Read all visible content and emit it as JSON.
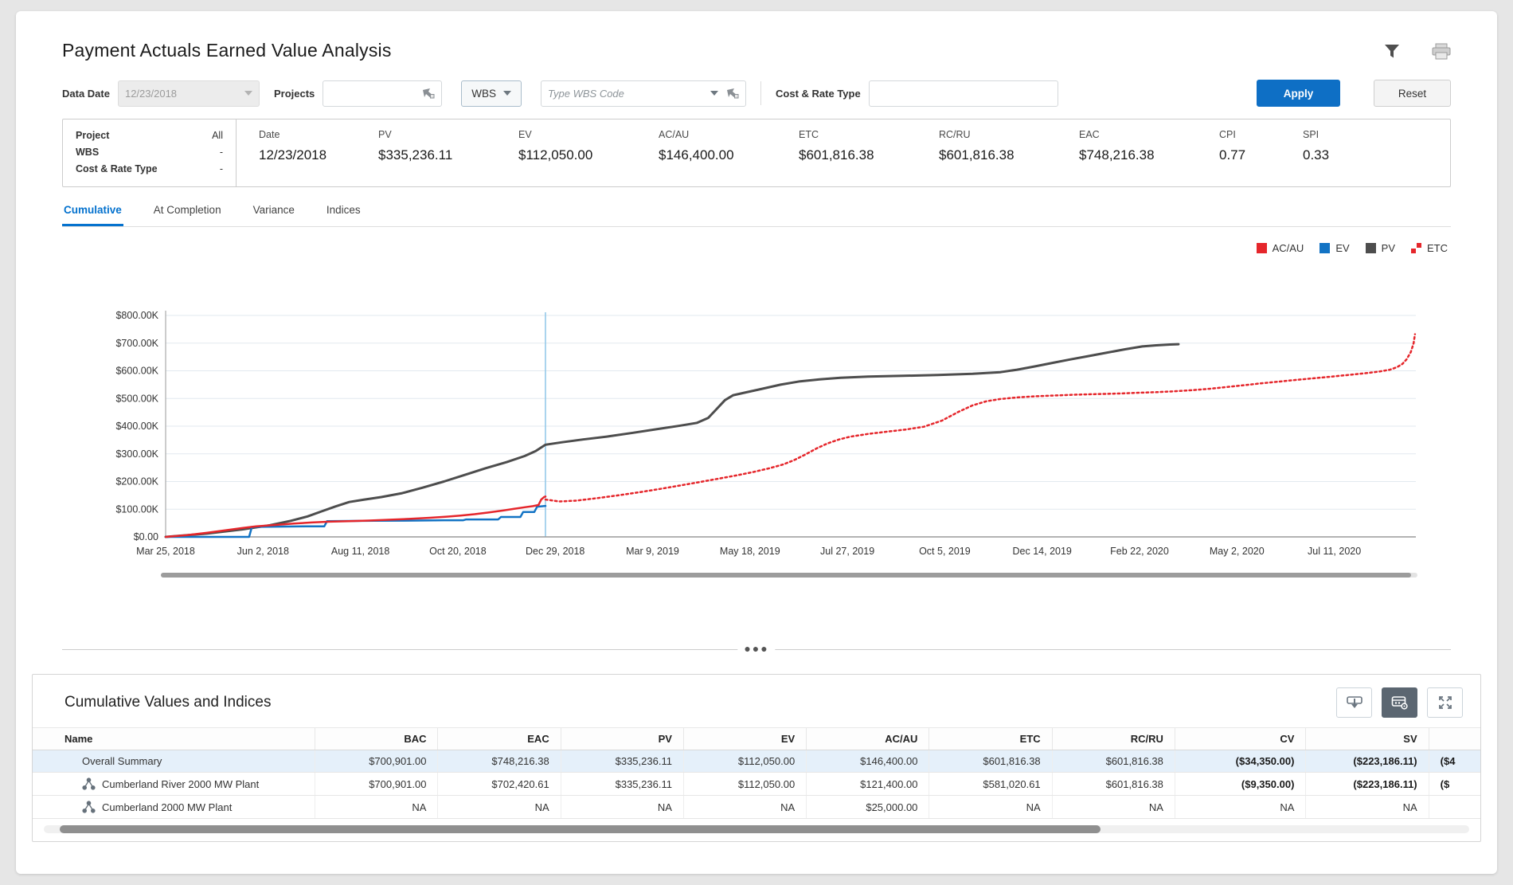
{
  "page": {
    "title": "Payment Actuals Earned Value Analysis"
  },
  "header_icons": {
    "filter": "funnel-icon",
    "print": "printer-icon"
  },
  "filters": {
    "data_date": {
      "label": "Data Date",
      "value": "12/23/2018"
    },
    "projects": {
      "label": "Projects",
      "value": ""
    },
    "wbs_selector": {
      "label": "WBS"
    },
    "wbs_code": {
      "placeholder": "Type WBS Code",
      "value": ""
    },
    "cost_rate_type": {
      "label": "Cost & Rate Type",
      "value": ""
    },
    "apply_label": "Apply",
    "reset_label": "Reset"
  },
  "summary": {
    "scope": [
      {
        "label": "Project",
        "value": "All"
      },
      {
        "label": "WBS",
        "value": "-"
      },
      {
        "label": "Cost & Rate Type",
        "value": "-"
      }
    ],
    "metrics": [
      {
        "label": "Date",
        "value": "12/23/2018"
      },
      {
        "label": "PV",
        "value": "$335,236.11"
      },
      {
        "label": "EV",
        "value": "$112,050.00"
      },
      {
        "label": "AC/AU",
        "value": "$146,400.00"
      },
      {
        "label": "ETC",
        "value": "$601,816.38"
      },
      {
        "label": "RC/RU",
        "value": "$601,816.38"
      },
      {
        "label": "EAC",
        "value": "$748,216.38"
      },
      {
        "label": "CPI",
        "value": "0.77"
      },
      {
        "label": "SPI",
        "value": "0.33"
      }
    ]
  },
  "tabs": [
    {
      "label": "Cumulative",
      "active": true
    },
    {
      "label": "At Completion",
      "active": false
    },
    {
      "label": "Variance",
      "active": false
    },
    {
      "label": "Indices",
      "active": false
    }
  ],
  "chart_data": {
    "type": "line",
    "unit": "USD (values in thousands)",
    "ylim": [
      0,
      800
    ],
    "y_tick_labels": [
      "$800.00K",
      "$700.00K",
      "$600.00K",
      "$500.00K",
      "$400.00K",
      "$300.00K",
      "$200.00K",
      "$100.00K",
      "$0.00"
    ],
    "x_tick_labels": [
      "Mar 25, 2018",
      "Jun 2, 2018",
      "Aug 11, 2018",
      "Oct 20, 2018",
      "Dec 29, 2018",
      "Mar 9, 2019",
      "May 18, 2019",
      "Jul 27, 2019",
      "Oct 5, 2019",
      "Dec 14, 2019",
      "Feb 22, 2020",
      "May 2, 2020",
      "Jul 11, 2020"
    ],
    "tick_interval_days": 70,
    "x_domain_days": [
      0,
      898
    ],
    "data_date": {
      "label": "12/23/2018",
      "day": 273
    },
    "grid": true,
    "legend_position": "top-right",
    "legend": [
      {
        "name": "AC/AU",
        "color": "#e5262b",
        "style": "solid"
      },
      {
        "name": "EV",
        "color": "#1273c4",
        "style": "solid"
      },
      {
        "name": "PV",
        "color": "#4d4d4d",
        "style": "solid"
      },
      {
        "name": "ETC",
        "color": "#e5262b",
        "style": "dotted"
      }
    ],
    "series": [
      {
        "name": "PV",
        "color": "#4d4d4d",
        "width": 3,
        "dash": null,
        "points": [
          [
            0,
            0
          ],
          [
            30,
            12
          ],
          [
            55,
            27
          ],
          [
            75,
            42
          ],
          [
            90,
            58
          ],
          [
            102,
            74
          ],
          [
            112,
            92
          ],
          [
            122,
            110
          ],
          [
            132,
            126
          ],
          [
            142,
            134
          ],
          [
            155,
            144
          ],
          [
            170,
            158
          ],
          [
            185,
            178
          ],
          [
            200,
            200
          ],
          [
            215,
            224
          ],
          [
            230,
            248
          ],
          [
            245,
            270
          ],
          [
            258,
            292
          ],
          [
            266,
            310
          ],
          [
            273,
            333
          ],
          [
            285,
            342
          ],
          [
            300,
            352
          ],
          [
            318,
            363
          ],
          [
            336,
            376
          ],
          [
            354,
            390
          ],
          [
            370,
            402
          ],
          [
            382,
            412
          ],
          [
            390,
            430
          ],
          [
            396,
            462
          ],
          [
            402,
            494
          ],
          [
            408,
            512
          ],
          [
            416,
            521
          ],
          [
            428,
            534
          ],
          [
            442,
            550
          ],
          [
            456,
            562
          ],
          [
            470,
            569
          ],
          [
            485,
            575
          ],
          [
            505,
            579
          ],
          [
            530,
            582
          ],
          [
            555,
            585
          ],
          [
            580,
            589
          ],
          [
            600,
            595
          ],
          [
            612,
            604
          ],
          [
            625,
            616
          ],
          [
            638,
            629
          ],
          [
            650,
            641
          ],
          [
            663,
            653
          ],
          [
            676,
            665
          ],
          [
            690,
            678
          ],
          [
            702,
            688
          ],
          [
            712,
            692
          ],
          [
            722,
            695
          ],
          [
            728,
            696
          ]
        ]
      },
      {
        "name": "EV",
        "color": "#1273c4",
        "width": 2.5,
        "dash": null,
        "points": [
          [
            0,
            0
          ],
          [
            60,
            0
          ],
          [
            62,
            36
          ],
          [
            80,
            37
          ],
          [
            100,
            38
          ],
          [
            114,
            38
          ],
          [
            116,
            57
          ],
          [
            150,
            58
          ],
          [
            180,
            59
          ],
          [
            200,
            60
          ],
          [
            214,
            60
          ],
          [
            216,
            63
          ],
          [
            239,
            63
          ],
          [
            241,
            72
          ],
          [
            255,
            72
          ],
          [
            257,
            90
          ],
          [
            265,
            90
          ],
          [
            267,
            109
          ],
          [
            273,
            112
          ]
        ]
      },
      {
        "name": "AC/AU",
        "color": "#e5262b",
        "width": 2.5,
        "dash": null,
        "points": [
          [
            0,
            0
          ],
          [
            15,
            6
          ],
          [
            30,
            15
          ],
          [
            45,
            25
          ],
          [
            55,
            32
          ],
          [
            65,
            38
          ],
          [
            78,
            43
          ],
          [
            92,
            48
          ],
          [
            105,
            52
          ],
          [
            118,
            55
          ],
          [
            132,
            57
          ],
          [
            146,
            59
          ],
          [
            160,
            62
          ],
          [
            175,
            65
          ],
          [
            190,
            69
          ],
          [
            202,
            73
          ],
          [
            212,
            77
          ],
          [
            222,
            82
          ],
          [
            232,
            88
          ],
          [
            242,
            95
          ],
          [
            250,
            101
          ],
          [
            258,
            107
          ],
          [
            264,
            111
          ],
          [
            268,
            115
          ],
          [
            270,
            135
          ],
          [
            272,
            144
          ],
          [
            273,
            146
          ]
        ]
      },
      {
        "name": "ETC",
        "color": "#e5262b",
        "width": 2.5,
        "dash": "2.5 3.5",
        "points": [
          [
            273,
            135
          ],
          [
            283,
            128
          ],
          [
            295,
            131
          ],
          [
            310,
            140
          ],
          [
            325,
            150
          ],
          [
            340,
            161
          ],
          [
            355,
            173
          ],
          [
            370,
            186
          ],
          [
            385,
            199
          ],
          [
            398,
            211
          ],
          [
            410,
            222
          ],
          [
            422,
            234
          ],
          [
            434,
            248
          ],
          [
            444,
            262
          ],
          [
            452,
            278
          ],
          [
            460,
            298
          ],
          [
            468,
            320
          ],
          [
            476,
            338
          ],
          [
            484,
            352
          ],
          [
            492,
            362
          ],
          [
            505,
            372
          ],
          [
            518,
            380
          ],
          [
            532,
            388
          ],
          [
            545,
            398
          ],
          [
            558,
            420
          ],
          [
            570,
            452
          ],
          [
            580,
            475
          ],
          [
            590,
            490
          ],
          [
            600,
            498
          ],
          [
            612,
            504
          ],
          [
            625,
            508
          ],
          [
            640,
            511
          ],
          [
            655,
            514
          ],
          [
            670,
            516
          ],
          [
            685,
            518
          ],
          [
            700,
            521
          ],
          [
            712,
            523
          ],
          [
            725,
            526
          ],
          [
            738,
            530
          ],
          [
            750,
            535
          ],
          [
            762,
            541
          ],
          [
            775,
            548
          ],
          [
            788,
            555
          ],
          [
            800,
            561
          ],
          [
            812,
            567
          ],
          [
            825,
            573
          ],
          [
            838,
            579
          ],
          [
            850,
            585
          ],
          [
            862,
            591
          ],
          [
            872,
            597
          ],
          [
            880,
            604
          ],
          [
            885,
            613
          ],
          [
            889,
            625
          ],
          [
            892,
            642
          ],
          [
            895,
            668
          ],
          [
            897,
            700
          ],
          [
            898,
            732
          ]
        ]
      }
    ]
  },
  "grid": {
    "title": "Cumulative Values and Indices",
    "buttons": [
      {
        "name": "export-button",
        "icon": "download-icon",
        "selected": false
      },
      {
        "name": "grid-settings-button",
        "icon": "grid-gear-icon",
        "selected": true
      },
      {
        "name": "expand-button",
        "icon": "expand-icon",
        "selected": false
      }
    ],
    "columns": [
      "Name",
      "BAC",
      "EAC",
      "PV",
      "EV",
      "AC/AU",
      "ETC",
      "RC/RU",
      "CV",
      "SV",
      ""
    ],
    "rows": [
      {
        "name": "Overall Summary",
        "icon": false,
        "selected": true,
        "values": [
          "$700,901.00",
          "$748,216.38",
          "$335,236.11",
          "$112,050.00",
          "$146,400.00",
          "$601,816.38",
          "$601,816.38",
          "($34,350.00)",
          "($223,186.11)",
          "($4"
        ]
      },
      {
        "name": "Cumberland River 2000 MW Plant",
        "icon": true,
        "selected": false,
        "values": [
          "$700,901.00",
          "$702,420.61",
          "$335,236.11",
          "$112,050.00",
          "$121,400.00",
          "$581,020.61",
          "$601,816.38",
          "($9,350.00)",
          "($223,186.11)",
          "($"
        ]
      },
      {
        "name": "Cumberland 2000 MW Plant",
        "icon": true,
        "selected": false,
        "values": [
          "NA",
          "NA",
          "NA",
          "NA",
          "$25,000.00",
          "NA",
          "NA",
          "NA",
          "NA",
          ""
        ]
      }
    ]
  }
}
